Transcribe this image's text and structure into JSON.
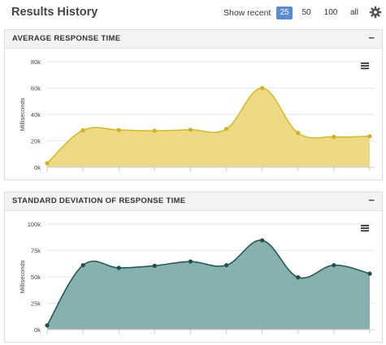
{
  "header": {
    "title": "Results History",
    "show_recent_label": "Show recent",
    "recent_options": [
      "25",
      "50",
      "100",
      "all"
    ],
    "active_option": "25"
  },
  "panels": [
    {
      "title": "AVERAGE RESPONSE TIME",
      "collapse_symbol": "−"
    },
    {
      "title": "STANDARD DEVIATION OF RESPONSE TIME",
      "collapse_symbol": "−"
    }
  ],
  "colors": {
    "avg_line": "#d9bb2b",
    "avg_fill": "#ecd577",
    "std_line": "#245a5a",
    "std_fill": "#7aa9a6",
    "active_button": "#5b8bd6"
  },
  "chart_data": [
    {
      "type": "area",
      "ylabel": "Milliseconds",
      "ylim": [
        0,
        80000
      ],
      "yticks": [
        0,
        20000,
        40000,
        60000,
        80000
      ],
      "ytick_labels": [
        "0k",
        "20k",
        "40k",
        "60k",
        "80k"
      ],
      "x": [
        1,
        2,
        3,
        4,
        5,
        6,
        7,
        8,
        9,
        10
      ],
      "series": [
        {
          "values": [
            3000,
            28000,
            28200,
            27600,
            28400,
            29000,
            60000,
            26000,
            23000,
            23500
          ]
        }
      ],
      "grid": true,
      "menu_icon": "hamburger-menu-icon"
    },
    {
      "type": "area",
      "ylabel": "Milliseconds",
      "ylim": [
        0,
        100000
      ],
      "yticks": [
        0,
        25000,
        50000,
        75000,
        100000
      ],
      "ytick_labels": [
        "0k",
        "25k",
        "50k",
        "75k",
        "100k"
      ],
      "x": [
        1,
        2,
        3,
        4,
        5,
        6,
        7,
        8,
        9,
        10
      ],
      "series": [
        {
          "values": [
            4000,
            61000,
            58500,
            60500,
            64500,
            61000,
            84500,
            49500,
            61000,
            53000
          ]
        }
      ],
      "grid": true,
      "menu_icon": "hamburger-menu-icon"
    }
  ]
}
